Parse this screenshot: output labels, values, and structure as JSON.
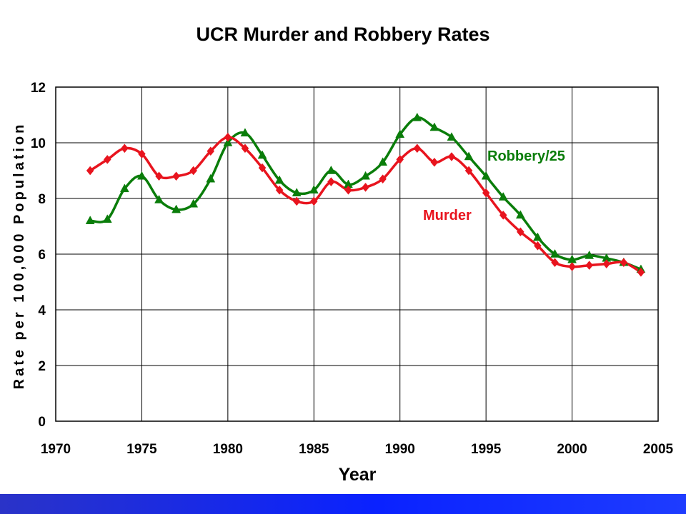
{
  "chart_data": {
    "type": "line",
    "title": "UCR Murder and Robbery Rates",
    "xlabel": "Year",
    "ylabel": "Rate per 100,000 Population",
    "xlim": [
      1970,
      2005
    ],
    "ylim": [
      0,
      12
    ],
    "x_ticks": [
      1970,
      1975,
      1980,
      1985,
      1990,
      1995,
      2000,
      2005
    ],
    "y_ticks": [
      0,
      2,
      4,
      6,
      8,
      10,
      12
    ],
    "grid": true,
    "legend": "inline labels next to series",
    "series": [
      {
        "name": "Robbery/25",
        "color": "#0a7d0a",
        "marker": "triangle",
        "x": [
          1972,
          1973,
          1974,
          1975,
          1976,
          1977,
          1978,
          1979,
          1980,
          1981,
          1982,
          1983,
          1984,
          1985,
          1986,
          1987,
          1988,
          1989,
          1990,
          1991,
          1992,
          1993,
          1994,
          1995,
          1996,
          1997,
          1998,
          1999,
          2000,
          2001,
          2002,
          2003,
          2004
        ],
        "values": [
          7.2,
          7.25,
          8.35,
          8.8,
          7.95,
          7.6,
          7.8,
          8.7,
          10.0,
          10.35,
          9.55,
          8.65,
          8.2,
          8.3,
          9.0,
          8.5,
          8.8,
          9.3,
          10.3,
          10.9,
          10.55,
          10.2,
          9.5,
          8.8,
          8.05,
          7.4,
          6.6,
          6.0,
          5.8,
          5.95,
          5.85,
          5.7,
          5.45
        ]
      },
      {
        "name": "Murder",
        "color": "#e8141e",
        "marker": "diamond",
        "x": [
          1972,
          1973,
          1974,
          1975,
          1976,
          1977,
          1978,
          1979,
          1980,
          1981,
          1982,
          1983,
          1984,
          1985,
          1986,
          1987,
          1988,
          1989,
          1990,
          1991,
          1992,
          1993,
          1994,
          1995,
          1996,
          1997,
          1998,
          1999,
          2000,
          2001,
          2002,
          2003,
          2004
        ],
        "values": [
          9.0,
          9.4,
          9.8,
          9.6,
          8.8,
          8.8,
          9.0,
          9.7,
          10.2,
          9.8,
          9.1,
          8.3,
          7.9,
          7.9,
          8.6,
          8.3,
          8.4,
          8.7,
          9.4,
          9.8,
          9.3,
          9.5,
          9.0,
          8.2,
          7.4,
          6.8,
          6.3,
          5.7,
          5.55,
          5.6,
          5.65,
          5.7,
          5.35
        ]
      }
    ]
  }
}
